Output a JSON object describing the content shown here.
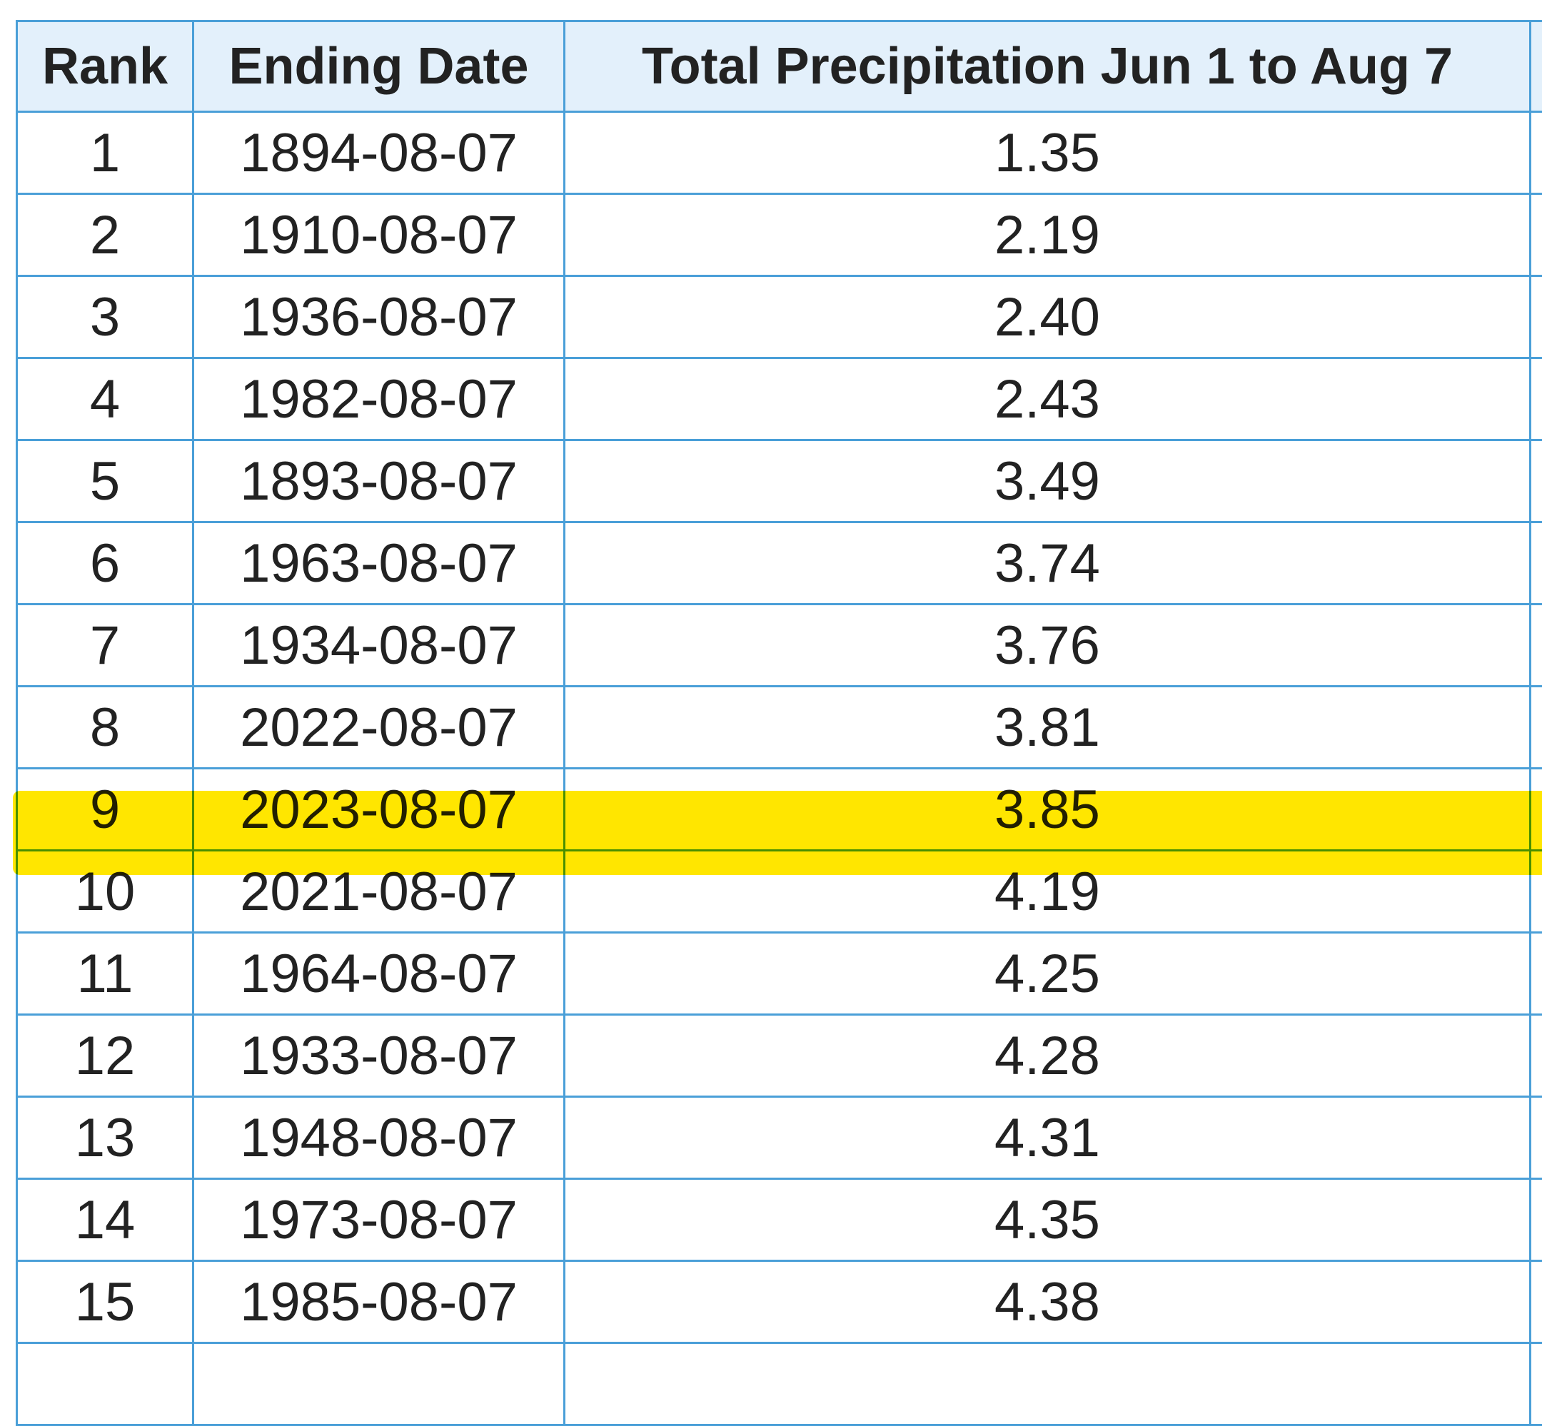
{
  "table": {
    "header": [
      "Rank",
      "Ending Date",
      "Total Precipitation Jun 1 to Aug 7"
    ],
    "rows": [
      [
        "1",
        "1894-08-07",
        "1.35"
      ],
      [
        "2",
        "1910-08-07",
        "2.19"
      ],
      [
        "3",
        "1936-08-07",
        "2.40"
      ],
      [
        "4",
        "1982-08-07",
        "2.43"
      ],
      [
        "5",
        "1893-08-07",
        "3.49"
      ],
      [
        "6",
        "1963-08-07",
        "3.74"
      ],
      [
        "7",
        "1934-08-07",
        "3.76"
      ],
      [
        "8",
        "2022-08-07",
        "3.81"
      ],
      [
        "9",
        "2023-08-07",
        "3.85"
      ],
      [
        "10",
        "2021-08-07",
        "4.19"
      ],
      [
        "11",
        "1964-08-07",
        "4.25"
      ],
      [
        "12",
        "1933-08-07",
        "4.28"
      ],
      [
        "13",
        "1948-08-07",
        "4.31"
      ],
      [
        "14",
        "1973-08-07",
        "4.35"
      ],
      [
        "15",
        "1985-08-07",
        "4.38"
      ]
    ]
  }
}
